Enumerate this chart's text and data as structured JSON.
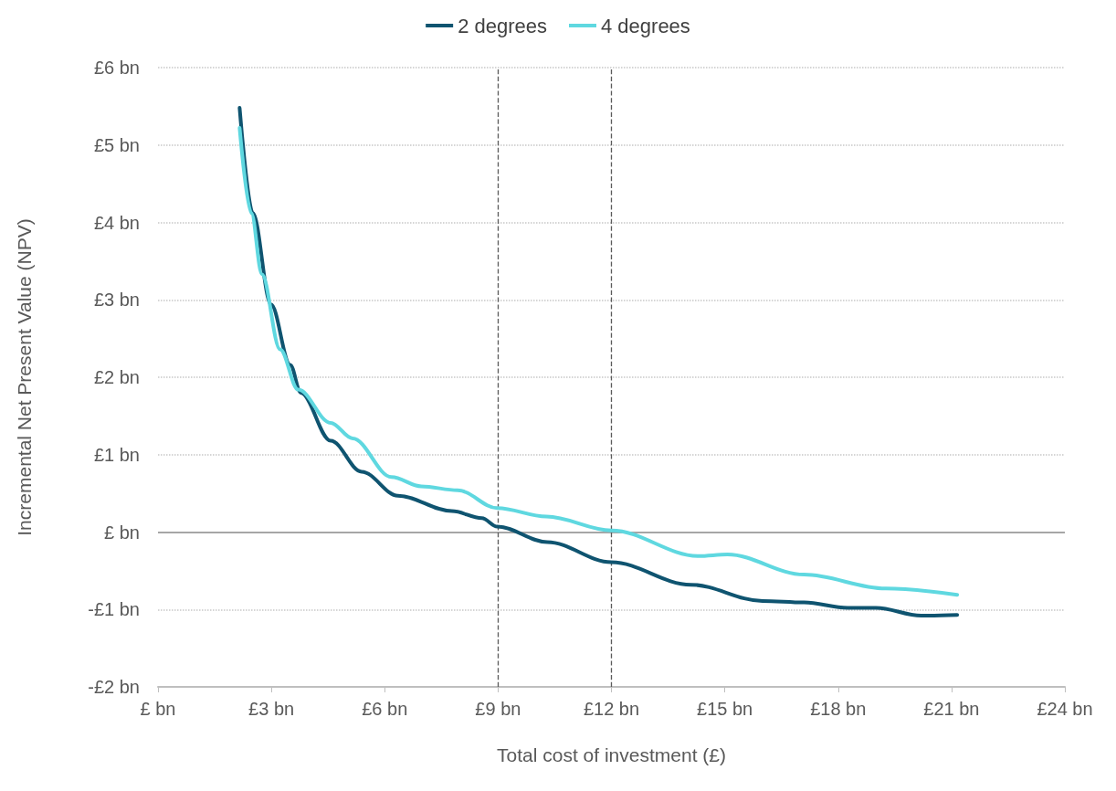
{
  "chart_data": {
    "type": "line",
    "xlabel": "Total cost of investment (£)",
    "ylabel": "Incremental Net Present Value (NPV)",
    "series": [
      {
        "name": "2 degrees",
        "color": "#0f5470",
        "x": [
          2.16,
          2.51,
          2.99,
          3.5,
          3.78,
          4.57,
          5.39,
          6.35,
          7.78,
          8.57,
          8.98,
          10.3,
          12.0,
          14.1,
          16.0,
          17.1,
          18.25,
          19.0,
          20.2,
          21.15
        ],
        "values": [
          5.48,
          4.12,
          2.94,
          2.16,
          1.8,
          1.18,
          0.78,
          0.47,
          0.27,
          0.18,
          0.07,
          -0.13,
          -0.39,
          -0.68,
          -0.89,
          -0.91,
          -0.98,
          -0.98,
          -1.08,
          -1.07
        ]
      },
      {
        "name": "4 degrees",
        "color": "#5fd8e0",
        "x": [
          2.16,
          2.47,
          2.75,
          3.23,
          3.71,
          4.57,
          5.15,
          6.18,
          6.97,
          7.93,
          8.98,
          10.28,
          12.0,
          14.3,
          15.07,
          17.1,
          19.26,
          21.15
        ],
        "values": [
          5.22,
          4.12,
          3.33,
          2.36,
          1.84,
          1.41,
          1.21,
          0.71,
          0.59,
          0.54,
          0.31,
          0.2,
          0.02,
          -0.31,
          -0.29,
          -0.55,
          -0.73,
          -0.81
        ]
      }
    ],
    "xlim": [
      0,
      24
    ],
    "xticks": [
      {
        "value": 0,
        "label": "£ bn"
      },
      {
        "value": 3,
        "label": "£3 bn"
      },
      {
        "value": 6,
        "label": "£6 bn"
      },
      {
        "value": 9,
        "label": "£9 bn"
      },
      {
        "value": 12,
        "label": "£12 bn"
      },
      {
        "value": 15,
        "label": "£15 bn"
      },
      {
        "value": 18,
        "label": "£18 bn"
      },
      {
        "value": 21,
        "label": "£21 bn"
      },
      {
        "value": 24,
        "label": "£24 bn"
      }
    ],
    "ylim": [
      -2,
      6
    ],
    "yticks": [
      {
        "value": -2,
        "label": "-£2 bn"
      },
      {
        "value": -1,
        "label": "-£1 bn"
      },
      {
        "value": 0,
        "label": "£ bn"
      },
      {
        "value": 1,
        "label": "£1 bn"
      },
      {
        "value": 2,
        "label": "£2 bn"
      },
      {
        "value": 3,
        "label": "£3 bn"
      },
      {
        "value": 4,
        "label": "£4 bn"
      },
      {
        "value": 5,
        "label": "£5 bn"
      },
      {
        "value": 6,
        "label": "£6 bn"
      }
    ],
    "ref_lines": [
      {
        "axis": "y",
        "value": 0,
        "color": "#a6a6a6",
        "line_style": "solid"
      },
      {
        "axis": "x",
        "value": 9,
        "color": "#595959",
        "line_style": "dashed"
      },
      {
        "axis": "x",
        "value": 12,
        "color": "#595959",
        "line_style": "dashed"
      }
    ],
    "grid": "y",
    "legend": "top",
    "marker": "none",
    "line_style": "solid"
  }
}
